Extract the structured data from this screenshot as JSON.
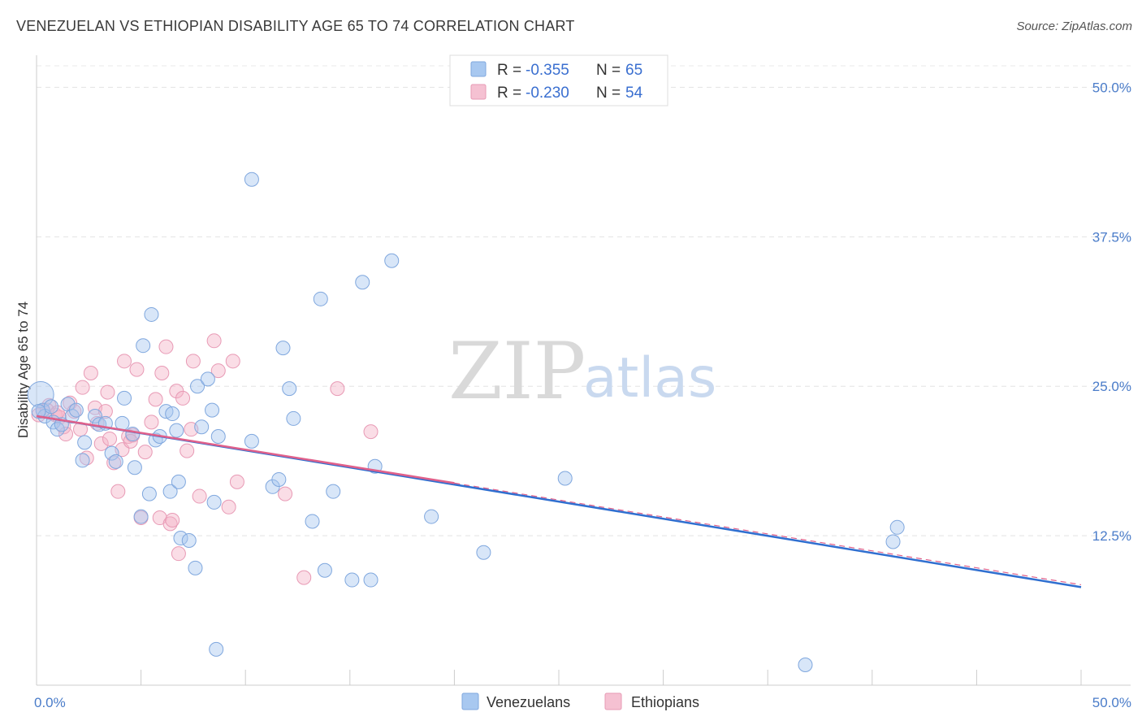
{
  "title": "VENEZUELAN VS ETHIOPIAN DISABILITY AGE 65 TO 74 CORRELATION CHART",
  "source": "Source: ZipAtlas.com",
  "watermark": {
    "zip": "ZIP",
    "atlas": "atlas"
  },
  "legend_top": [
    {
      "r_label": "R = ",
      "r_value": "-0.355",
      "n_label": "N = ",
      "n_value": "65"
    },
    {
      "r_label": "R = ",
      "r_value": "-0.230",
      "n_label": "N = ",
      "n_value": "54"
    }
  ],
  "chart_data": {
    "type": "scatter",
    "title": "VENEZUELAN VS ETHIOPIAN DISABILITY AGE 65 TO 74 CORRELATION CHART",
    "xlabel": "",
    "ylabel": "Disability Age 65 to 74",
    "xlim": [
      0,
      50
    ],
    "ylim": [
      0,
      52
    ],
    "x_tick_labels": [
      {
        "value": 0,
        "label": "0.0%"
      },
      {
        "value": 50,
        "label": "50.0%"
      }
    ],
    "y_tick_labels": [
      {
        "value": 12.5,
        "label": "12.5%"
      },
      {
        "value": 25,
        "label": "25.0%"
      },
      {
        "value": 37.5,
        "label": "37.5%"
      },
      {
        "value": 50,
        "label": "50.0%"
      }
    ],
    "grid": true,
    "legend_placement": "bottom",
    "colors": {
      "Venezuelans": "#a8c8f0",
      "Ethiopians": "#f5b3c8",
      "blue_line": "#2f6fd0",
      "pink_line": "#e0608a"
    },
    "series": [
      {
        "name": "Venezuelans",
        "r": -0.355,
        "n": 65,
        "trend": [
          [
            0,
            22.5
          ],
          [
            50,
            8.2
          ]
        ],
        "points": [
          [
            0.2,
            24.3
          ],
          [
            0.3,
            23.0
          ],
          [
            0.4,
            22.5
          ],
          [
            0.7,
            23.3
          ],
          [
            0.8,
            22.0
          ],
          [
            1.0,
            21.4
          ],
          [
            1.2,
            21.8
          ],
          [
            1.5,
            23.5
          ],
          [
            1.7,
            22.5
          ],
          [
            1.9,
            23.0
          ],
          [
            2.2,
            18.8
          ],
          [
            2.3,
            20.3
          ],
          [
            2.8,
            22.5
          ],
          [
            3.0,
            21.8
          ],
          [
            3.3,
            21.9
          ],
          [
            3.6,
            19.4
          ],
          [
            3.8,
            18.7
          ],
          [
            4.1,
            21.9
          ],
          [
            4.2,
            24.0
          ],
          [
            4.6,
            21.0
          ],
          [
            4.7,
            18.2
          ],
          [
            5.0,
            14.1
          ],
          [
            5.1,
            28.4
          ],
          [
            5.4,
            16.0
          ],
          [
            5.5,
            31.0
          ],
          [
            5.7,
            20.5
          ],
          [
            5.9,
            20.8
          ],
          [
            6.2,
            22.9
          ],
          [
            6.4,
            16.2
          ],
          [
            6.5,
            22.7
          ],
          [
            6.7,
            21.3
          ],
          [
            6.8,
            17.0
          ],
          [
            6.9,
            12.3
          ],
          [
            7.3,
            12.1
          ],
          [
            7.6,
            9.8
          ],
          [
            7.7,
            25.0
          ],
          [
            7.9,
            21.6
          ],
          [
            8.2,
            25.6
          ],
          [
            8.4,
            23.0
          ],
          [
            8.5,
            15.3
          ],
          [
            8.6,
            3.0
          ],
          [
            8.7,
            20.8
          ],
          [
            10.3,
            42.3
          ],
          [
            10.3,
            20.4
          ],
          [
            11.3,
            16.6
          ],
          [
            11.6,
            17.2
          ],
          [
            11.8,
            28.2
          ],
          [
            12.1,
            24.8
          ],
          [
            12.3,
            22.3
          ],
          [
            13.2,
            13.7
          ],
          [
            13.6,
            32.3
          ],
          [
            13.8,
            9.6
          ],
          [
            14.2,
            16.2
          ],
          [
            15.1,
            8.8
          ],
          [
            15.6,
            33.7
          ],
          [
            16.0,
            8.8
          ],
          [
            16.2,
            18.3
          ],
          [
            17.0,
            35.5
          ],
          [
            18.9,
            14.1
          ],
          [
            21.4,
            11.1
          ],
          [
            25.3,
            17.3
          ],
          [
            36.8,
            1.7
          ],
          [
            41.0,
            12.0
          ],
          [
            41.2,
            13.2
          ],
          [
            0.1,
            22.9
          ]
        ]
      },
      {
        "name": "Ethiopians",
        "r": -0.23,
        "n": 54,
        "trend": [
          [
            0,
            22.5
          ],
          [
            20,
            16.9
          ]
        ],
        "trend_dashed": [
          [
            20,
            16.9
          ],
          [
            50,
            8.4
          ]
        ],
        "points": [
          [
            0.3,
            22.9
          ],
          [
            0.6,
            23.4
          ],
          [
            0.9,
            22.6
          ],
          [
            1.1,
            22.4
          ],
          [
            1.3,
            21.6
          ],
          [
            1.4,
            21.0
          ],
          [
            1.6,
            23.6
          ],
          [
            1.8,
            22.9
          ],
          [
            2.1,
            21.4
          ],
          [
            2.2,
            24.9
          ],
          [
            2.4,
            19.0
          ],
          [
            2.6,
            26.1
          ],
          [
            2.8,
            23.2
          ],
          [
            2.9,
            21.9
          ],
          [
            3.1,
            20.2
          ],
          [
            3.3,
            22.9
          ],
          [
            3.4,
            24.5
          ],
          [
            3.5,
            20.6
          ],
          [
            3.7,
            18.6
          ],
          [
            3.9,
            16.2
          ],
          [
            4.1,
            19.7
          ],
          [
            4.2,
            27.1
          ],
          [
            4.4,
            20.8
          ],
          [
            4.6,
            20.9
          ],
          [
            4.8,
            26.4
          ],
          [
            5.0,
            14.0
          ],
          [
            5.2,
            19.5
          ],
          [
            5.5,
            22.0
          ],
          [
            5.7,
            23.9
          ],
          [
            5.9,
            14.0
          ],
          [
            6.0,
            26.1
          ],
          [
            6.2,
            28.3
          ],
          [
            6.4,
            13.5
          ],
          [
            6.5,
            13.8
          ],
          [
            6.7,
            24.6
          ],
          [
            6.8,
            11.0
          ],
          [
            7.0,
            24.0
          ],
          [
            7.2,
            19.6
          ],
          [
            7.4,
            21.4
          ],
          [
            7.5,
            27.1
          ],
          [
            7.8,
            15.8
          ],
          [
            8.5,
            28.8
          ],
          [
            8.7,
            26.3
          ],
          [
            9.2,
            14.9
          ],
          [
            9.4,
            27.1
          ],
          [
            9.6,
            17.0
          ],
          [
            11.9,
            16.0
          ],
          [
            12.8,
            9.0
          ],
          [
            14.4,
            24.8
          ],
          [
            16.0,
            21.2
          ],
          [
            0.1,
            22.6
          ],
          [
            0.5,
            23.0
          ],
          [
            1.0,
            22.8
          ],
          [
            4.5,
            20.4
          ]
        ]
      }
    ]
  },
  "bottom_legend": [
    {
      "label": "Venezuelans"
    },
    {
      "label": "Ethiopians"
    }
  ]
}
